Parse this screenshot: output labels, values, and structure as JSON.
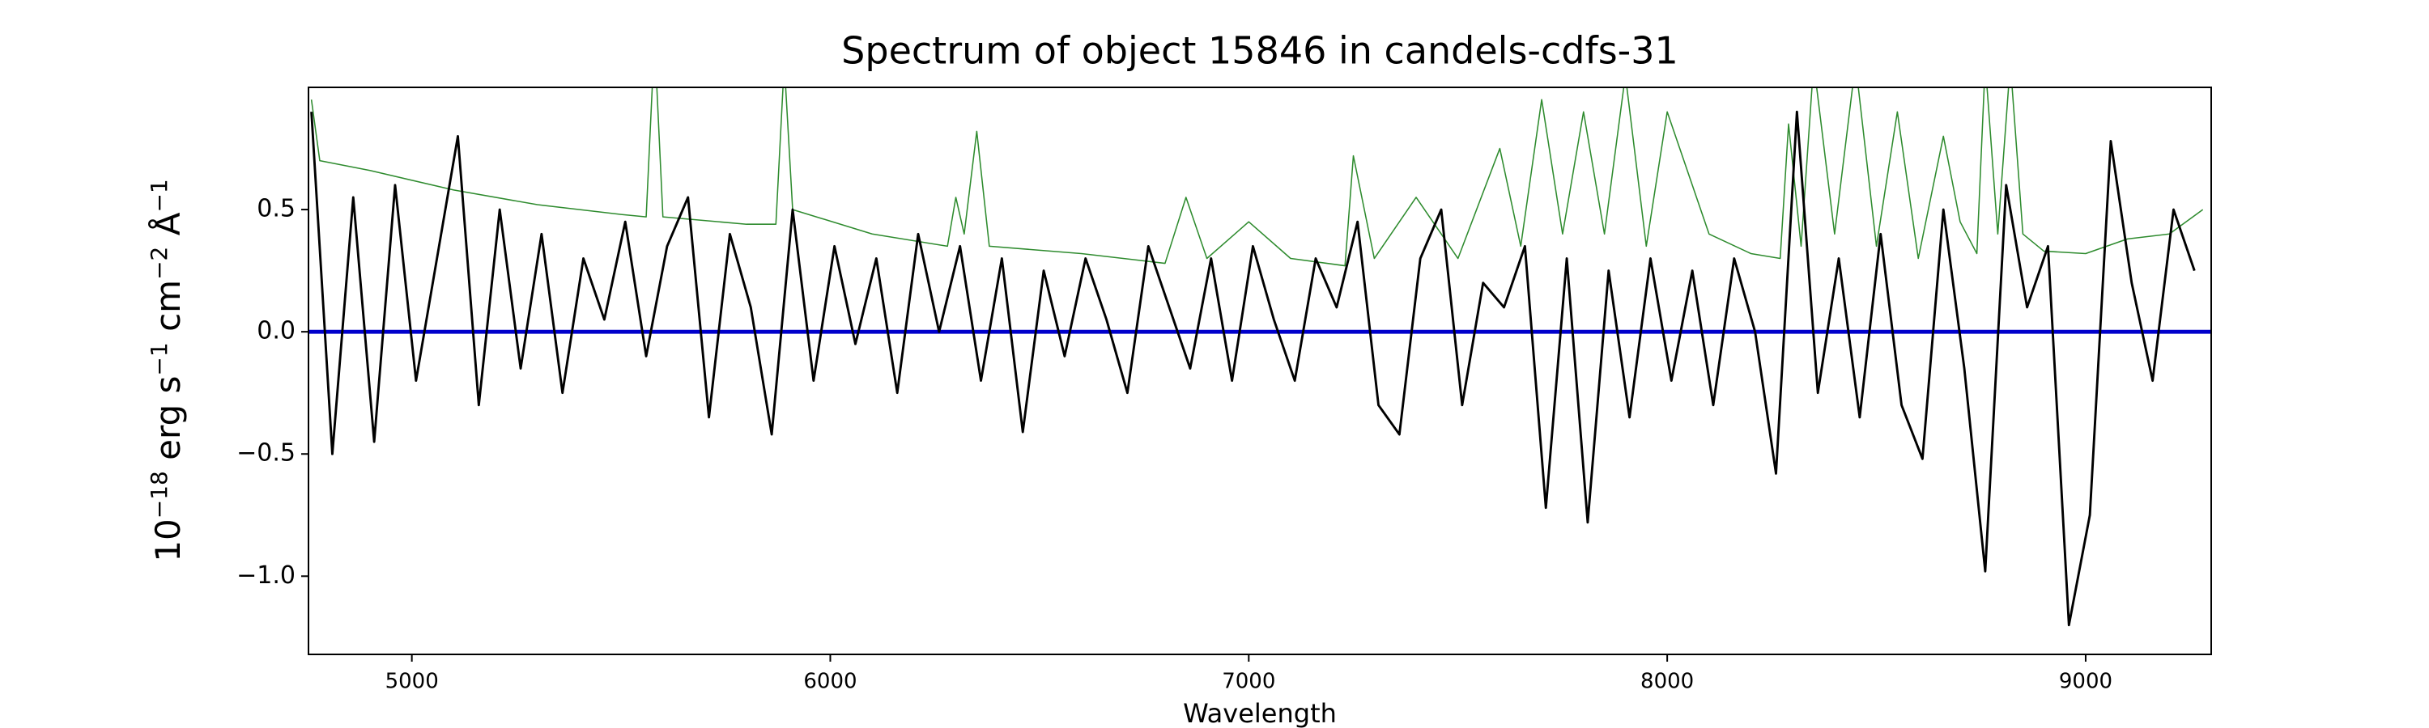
{
  "chart_data": {
    "type": "line",
    "title": "Spectrum of object 15846 in candels-cdfs-31",
    "xlabel": "Wavelength",
    "ylabel": [
      {
        "text": "10"
      },
      {
        "text": "−18",
        "sup": true
      },
      {
        "text": " erg s"
      },
      {
        "text": "−1",
        "sup": true
      },
      {
        "text": " cm"
      },
      {
        "text": "−2",
        "sup": true
      },
      {
        "text": " Å"
      },
      {
        "text": "−1",
        "sup": true
      }
    ],
    "xlim": [
      4753,
      9300
    ],
    "ylim": [
      -1.32,
      1.0
    ],
    "xticks": [
      5000,
      6000,
      7000,
      8000,
      9000
    ],
    "yticks": [
      {
        "value": -1.0,
        "label": "−1.0"
      },
      {
        "value": -0.5,
        "label": "−0.5"
      },
      {
        "value": 0.0,
        "label": "0.0"
      },
      {
        "value": 0.5,
        "label": "0.5"
      }
    ],
    "grid": false,
    "series": [
      {
        "color": "#2e8b2e",
        "linewidth": 0.8,
        "x": [
          4760,
          4780,
          4900,
          5100,
          5300,
          5500,
          5560,
          5580,
          5600,
          5800,
          5870,
          5890,
          5910,
          6100,
          6280,
          6300,
          6320,
          6350,
          6380,
          6600,
          6800,
          6850,
          6900,
          7000,
          7100,
          7230,
          7250,
          7300,
          7400,
          7500,
          7600,
          7650,
          7700,
          7750,
          7800,
          7850,
          7900,
          7950,
          8000,
          8100,
          8200,
          8270,
          8290,
          8320,
          8350,
          8400,
          8450,
          8500,
          8550,
          8600,
          8660,
          8700,
          8740,
          8760,
          8790,
          8820,
          8850,
          8900,
          9000,
          9100,
          9200,
          9280
        ],
        "values": [
          0.95,
          0.7,
          0.66,
          0.58,
          0.52,
          0.48,
          0.47,
          1.2,
          0.47,
          0.44,
          0.44,
          1.1,
          0.5,
          0.4,
          0.35,
          0.55,
          0.4,
          0.82,
          0.35,
          0.32,
          0.28,
          0.55,
          0.3,
          0.45,
          0.3,
          0.27,
          0.72,
          0.3,
          0.55,
          0.3,
          0.75,
          0.35,
          0.95,
          0.4,
          0.9,
          0.4,
          1.05,
          0.35,
          0.9,
          0.4,
          0.32,
          0.3,
          0.85,
          0.35,
          1.1,
          0.4,
          1.1,
          0.35,
          0.9,
          0.3,
          0.8,
          0.45,
          0.32,
          1.1,
          0.4,
          1.1,
          0.4,
          0.33,
          0.32,
          0.38,
          0.4,
          0.5
        ]
      },
      {
        "color": "#0000cc",
        "linewidth": 2.5,
        "x": [
          4753,
          9300
        ],
        "values": [
          0,
          0
        ]
      },
      {
        "color": "#000000",
        "linewidth": 1.5,
        "x": [
          4760,
          4810,
          4860,
          4910,
          4960,
          5010,
          5060,
          5110,
          5160,
          5210,
          5260,
          5310,
          5360,
          5410,
          5460,
          5510,
          5560,
          5610,
          5660,
          5710,
          5760,
          5810,
          5860,
          5910,
          5960,
          6010,
          6060,
          6110,
          6160,
          6210,
          6260,
          6310,
          6360,
          6410,
          6460,
          6510,
          6560,
          6610,
          6660,
          6710,
          6760,
          6810,
          6860,
          6910,
          6960,
          7010,
          7060,
          7110,
          7160,
          7210,
          7260,
          7310,
          7360,
          7410,
          7460,
          7510,
          7560,
          7610,
          7660,
          7710,
          7760,
          7810,
          7860,
          7910,
          7960,
          8010,
          8060,
          8110,
          8160,
          8210,
          8260,
          8310,
          8360,
          8410,
          8460,
          8510,
          8560,
          8610,
          8660,
          8710,
          8760,
          8810,
          8860,
          8910,
          8960,
          9010,
          9060,
          9110,
          9160,
          9210,
          9260
        ],
        "values": [
          0.9,
          -0.5,
          0.55,
          -0.45,
          0.6,
          -0.2,
          0.3,
          0.8,
          -0.3,
          0.5,
          -0.15,
          0.4,
          -0.25,
          0.3,
          0.05,
          0.45,
          -0.1,
          0.35,
          0.55,
          -0.35,
          0.4,
          0.1,
          -0.42,
          0.5,
          -0.2,
          0.35,
          -0.05,
          0.3,
          -0.25,
          0.4,
          0.0,
          0.35,
          -0.2,
          0.3,
          -0.41,
          0.25,
          -0.1,
          0.3,
          0.05,
          -0.25,
          0.35,
          0.1,
          -0.15,
          0.3,
          -0.2,
          0.35,
          0.05,
          -0.2,
          0.3,
          0.1,
          0.45,
          -0.3,
          -0.42,
          0.3,
          0.5,
          -0.3,
          0.2,
          0.1,
          0.35,
          -0.72,
          0.3,
          -0.78,
          0.25,
          -0.35,
          0.3,
          -0.2,
          0.25,
          -0.3,
          0.3,
          0.0,
          -0.58,
          0.9,
          -0.25,
          0.3,
          -0.35,
          0.4,
          -0.3,
          -0.52,
          0.5,
          -0.15,
          -0.98,
          0.6,
          0.1,
          0.35,
          -1.2,
          -0.75,
          0.78,
          0.2,
          -0.2,
          0.5,
          0.25
        ]
      }
    ]
  }
}
